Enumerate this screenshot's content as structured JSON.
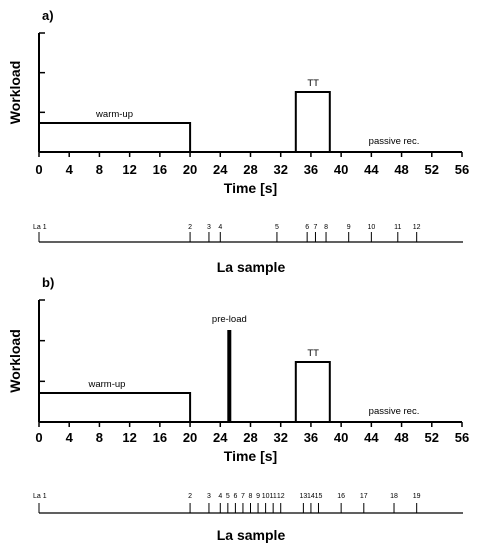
{
  "chart_data": [
    {
      "type": "line",
      "panel_label": "a)",
      "ylabel": "Workload",
      "xlabel": "Time [s]",
      "xlim": [
        0,
        56
      ],
      "x_ticks": [
        "0",
        "4",
        "8",
        "12",
        "16",
        "20",
        "24",
        "28",
        "32",
        "36",
        "40",
        "44",
        "48",
        "52",
        "56"
      ],
      "y_tick_count": 3,
      "series": [
        {
          "x": [
            0,
            0,
            20,
            20,
            34,
            34,
            38.5,
            38.5,
            54
          ],
          "y": [
            0.7,
            1.45,
            1.45,
            0,
            0,
            3.0,
            3.0,
            0,
            0
          ]
        }
      ],
      "annotations": [
        {
          "text": "warm-up",
          "x": 10,
          "y": 1.75
        },
        {
          "text": "TT",
          "x": 36.3,
          "y": 3.3
        },
        {
          "text": "passive rec.",
          "x": 47,
          "y": 0.4
        }
      ],
      "la_sample": {
        "title": "La sample",
        "start_label": "La 1",
        "labels": [
          "2",
          "3",
          "4",
          "5",
          "6",
          "7",
          "8",
          "9",
          "10",
          "11",
          "12"
        ],
        "times": [
          20,
          22.5,
          24,
          31.5,
          35.5,
          36.6,
          38,
          41,
          44,
          47.5,
          50
        ]
      }
    },
    {
      "type": "line",
      "panel_label": "b)",
      "ylabel": "Workload",
      "xlabel": "Time [s]",
      "xlim": [
        0,
        56
      ],
      "x_ticks": [
        "0",
        "4",
        "8",
        "12",
        "16",
        "20",
        "24",
        "28",
        "32",
        "36",
        "40",
        "44",
        "48",
        "52",
        "56"
      ],
      "y_tick_count": 3,
      "series": [
        {
          "x": [
            0,
            0,
            20,
            20,
            34,
            34,
            38.5,
            38.5,
            54
          ],
          "y": [
            0.7,
            1.45,
            1.45,
            0,
            0,
            3.0,
            3.0,
            0,
            0
          ]
        },
        {
          "x": [
            25.2,
            25.2
          ],
          "y": [
            0,
            4.6
          ]
        }
      ],
      "annotations": [
        {
          "text": "pre-load",
          "x": 25.2,
          "y": 5.0
        },
        {
          "text": "warm-up",
          "x": 9,
          "y": 1.75
        },
        {
          "text": "TT",
          "x": 36.3,
          "y": 3.3
        },
        {
          "text": "passive rec.",
          "x": 47,
          "y": 0.4
        }
      ],
      "la_sample": {
        "title": "La sample",
        "start_label": "La 1",
        "labels": [
          "2",
          "3",
          "4",
          "5",
          "6",
          "7",
          "8",
          "9",
          "10",
          "11",
          "12",
          "13",
          "14",
          "15",
          "16",
          "17",
          "18",
          "19"
        ],
        "times": [
          20,
          22.5,
          24,
          25,
          26,
          27,
          28,
          29,
          30,
          31,
          32,
          35,
          36,
          37,
          40,
          43,
          47,
          50
        ]
      }
    }
  ]
}
